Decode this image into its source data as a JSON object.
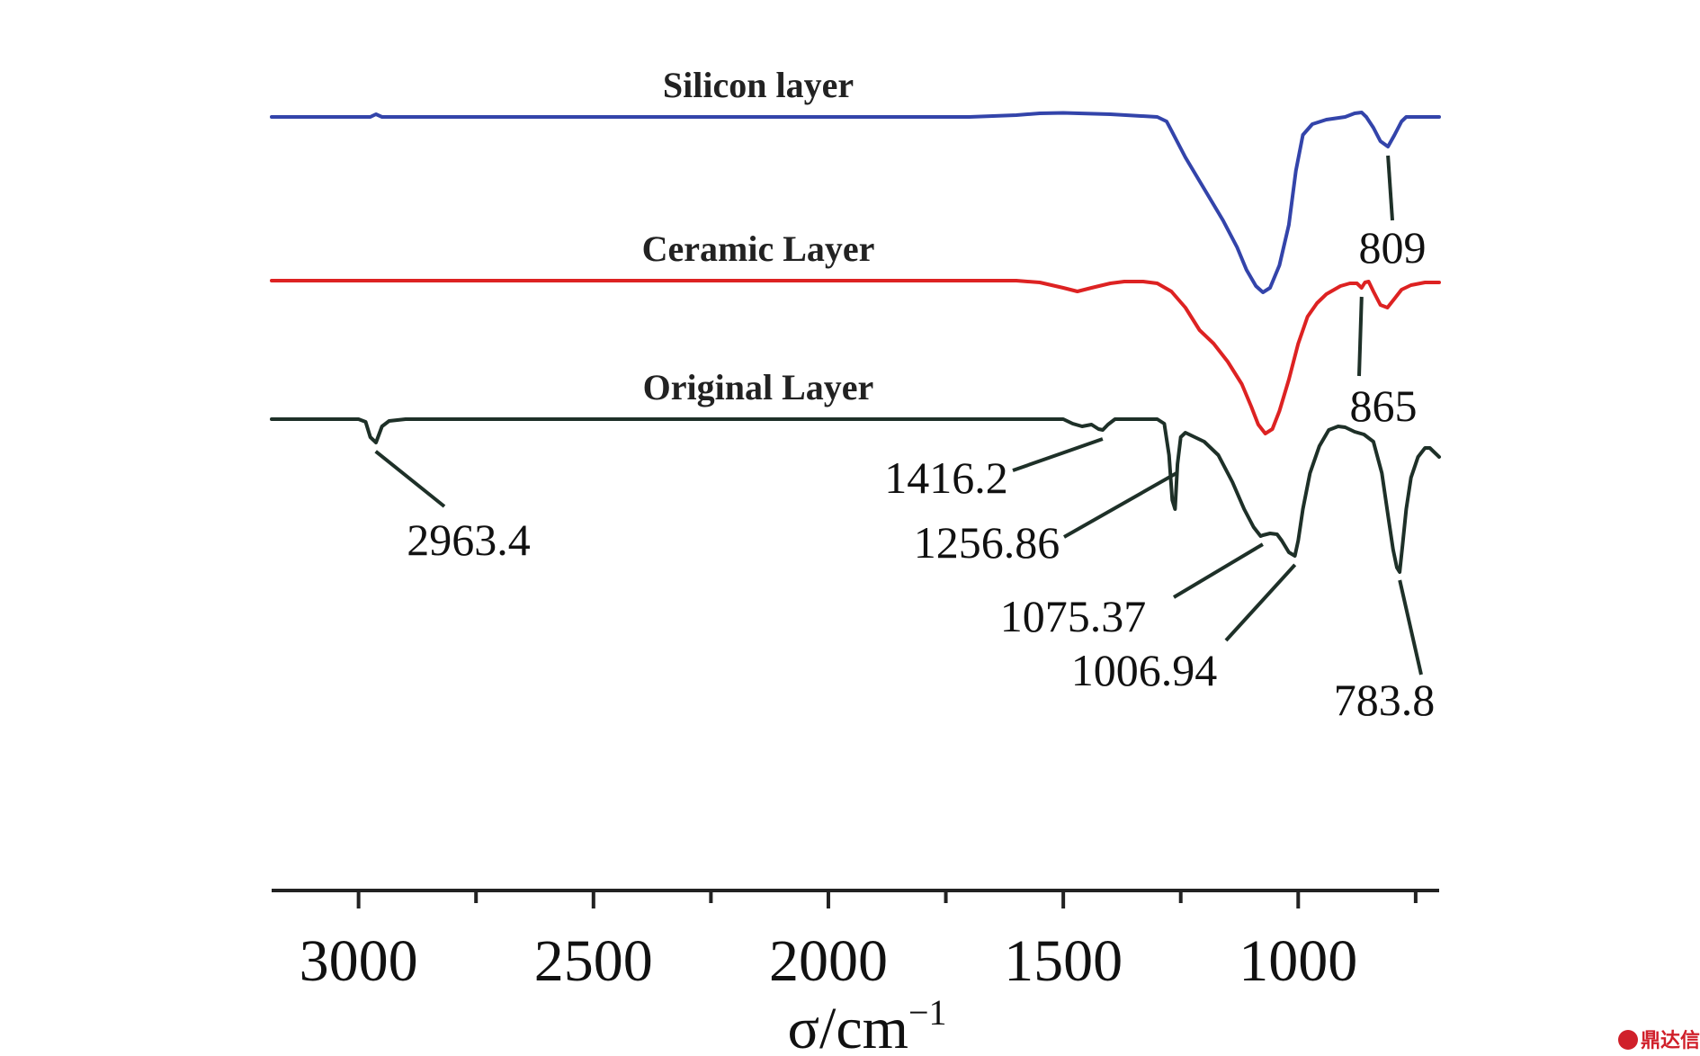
{
  "chart_data": {
    "type": "line",
    "x_axis": {
      "label_symbol": "σ",
      "label_unit": "/cm",
      "label_exp": "−1",
      "reversed": true,
      "xlim": [
        3185,
        700
      ],
      "major_ticks": [
        3000,
        2500,
        2000,
        1500,
        1000
      ],
      "minor_ticks": [
        2750,
        2250,
        1750,
        1250,
        750
      ],
      "tick_labels": [
        "3000",
        "2500",
        "2000",
        "1500",
        "1000"
      ]
    },
    "y_axis": {
      "shown": false
    },
    "grid": false,
    "legend": "none",
    "series": [
      {
        "name": "Silicon layer",
        "color": "#3344aa",
        "points": [
          [
            3185,
            0.0
          ],
          [
            3000,
            0.0
          ],
          [
            2975,
            0.0
          ],
          [
            2963,
            0.03
          ],
          [
            2950,
            0.0
          ],
          [
            2500,
            0.0
          ],
          [
            2000,
            0.0
          ],
          [
            1700,
            0.0
          ],
          [
            1600,
            0.02
          ],
          [
            1550,
            0.04
          ],
          [
            1500,
            0.045
          ],
          [
            1400,
            0.03
          ],
          [
            1300,
            0.0
          ],
          [
            1280,
            -0.05
          ],
          [
            1270,
            -0.15
          ],
          [
            1240,
            -0.45
          ],
          [
            1200,
            -0.8
          ],
          [
            1160,
            -1.15
          ],
          [
            1130,
            -1.45
          ],
          [
            1110,
            -1.7
          ],
          [
            1090,
            -1.88
          ],
          [
            1075,
            -1.95
          ],
          [
            1060,
            -1.9
          ],
          [
            1040,
            -1.65
          ],
          [
            1020,
            -1.2
          ],
          [
            1005,
            -0.6
          ],
          [
            990,
            -0.2
          ],
          [
            970,
            -0.08
          ],
          [
            940,
            -0.03
          ],
          [
            900,
            0.0
          ],
          [
            880,
            0.04
          ],
          [
            865,
            0.05
          ],
          [
            855,
            0.0
          ],
          [
            840,
            -0.12
          ],
          [
            825,
            -0.27
          ],
          [
            809,
            -0.33
          ],
          [
            795,
            -0.2
          ],
          [
            780,
            -0.05
          ],
          [
            770,
            0.0
          ],
          [
            700,
            0.0
          ]
        ]
      },
      {
        "name": "Ceramic Layer",
        "color": "#dd2222",
        "points": [
          [
            3185,
            0.0
          ],
          [
            2950,
            0.0
          ],
          [
            2500,
            0.0
          ],
          [
            2000,
            0.0
          ],
          [
            1600,
            0.0
          ],
          [
            1550,
            -0.02
          ],
          [
            1500,
            -0.08
          ],
          [
            1470,
            -0.12
          ],
          [
            1440,
            -0.08
          ],
          [
            1400,
            -0.03
          ],
          [
            1370,
            -0.01
          ],
          [
            1330,
            -0.01
          ],
          [
            1300,
            -0.03
          ],
          [
            1270,
            -0.12
          ],
          [
            1240,
            -0.3
          ],
          [
            1210,
            -0.55
          ],
          [
            1180,
            -0.7
          ],
          [
            1150,
            -0.9
          ],
          [
            1120,
            -1.15
          ],
          [
            1100,
            -1.4
          ],
          [
            1085,
            -1.6
          ],
          [
            1070,
            -1.7
          ],
          [
            1055,
            -1.65
          ],
          [
            1040,
            -1.45
          ],
          [
            1020,
            -1.1
          ],
          [
            1000,
            -0.7
          ],
          [
            980,
            -0.4
          ],
          [
            960,
            -0.25
          ],
          [
            940,
            -0.15
          ],
          [
            910,
            -0.06
          ],
          [
            890,
            -0.03
          ],
          [
            875,
            -0.03
          ],
          [
            865,
            -0.08
          ],
          [
            858,
            -0.02
          ],
          [
            850,
            -0.01
          ],
          [
            840,
            -0.12
          ],
          [
            825,
            -0.27
          ],
          [
            810,
            -0.3
          ],
          [
            795,
            -0.2
          ],
          [
            780,
            -0.1
          ],
          [
            760,
            -0.05
          ],
          [
            730,
            -0.02
          ],
          [
            700,
            -0.02
          ]
        ]
      },
      {
        "name": "Original Layer",
        "color": "#1e3028",
        "points": [
          [
            3185,
            0.0
          ],
          [
            3000,
            0.0
          ],
          [
            2985,
            -0.03
          ],
          [
            2975,
            -0.2
          ],
          [
            2963,
            -0.26
          ],
          [
            2950,
            -0.08
          ],
          [
            2935,
            -0.02
          ],
          [
            2900,
            0.0
          ],
          [
            2500,
            0.0
          ],
          [
            2000,
            0.0
          ],
          [
            1500,
            0.0
          ],
          [
            1480,
            -0.05
          ],
          [
            1460,
            -0.08
          ],
          [
            1440,
            -0.06
          ],
          [
            1425,
            -0.11
          ],
          [
            1416,
            -0.12
          ],
          [
            1405,
            -0.06
          ],
          [
            1390,
            0.0
          ],
          [
            1300,
            0.0
          ],
          [
            1285,
            -0.05
          ],
          [
            1275,
            -0.4
          ],
          [
            1268,
            -0.9
          ],
          [
            1262,
            -1.0
          ],
          [
            1257,
            -0.5
          ],
          [
            1250,
            -0.2
          ],
          [
            1240,
            -0.15
          ],
          [
            1200,
            -0.25
          ],
          [
            1170,
            -0.4
          ],
          [
            1140,
            -0.7
          ],
          [
            1115,
            -1.0
          ],
          [
            1095,
            -1.2
          ],
          [
            1080,
            -1.3
          ],
          [
            1075,
            -1.29
          ],
          [
            1060,
            -1.27
          ],
          [
            1045,
            -1.28
          ],
          [
            1035,
            -1.35
          ],
          [
            1020,
            -1.48
          ],
          [
            1007,
            -1.52
          ],
          [
            1000,
            -1.35
          ],
          [
            990,
            -1.0
          ],
          [
            975,
            -0.6
          ],
          [
            955,
            -0.3
          ],
          [
            935,
            -0.12
          ],
          [
            915,
            -0.08
          ],
          [
            900,
            -0.09
          ],
          [
            880,
            -0.14
          ],
          [
            860,
            -0.17
          ],
          [
            840,
            -0.25
          ],
          [
            822,
            -0.6
          ],
          [
            808,
            -1.1
          ],
          [
            798,
            -1.45
          ],
          [
            790,
            -1.65
          ],
          [
            784,
            -1.7
          ],
          [
            778,
            -1.4
          ],
          [
            770,
            -1.0
          ],
          [
            760,
            -0.65
          ],
          [
            745,
            -0.42
          ],
          [
            730,
            -0.32
          ],
          [
            720,
            -0.32
          ],
          [
            710,
            -0.37
          ],
          [
            700,
            -0.42
          ]
        ]
      }
    ],
    "annotations": [
      {
        "text": "809",
        "series": "Silicon layer",
        "x": 809
      },
      {
        "text": "865",
        "series": "Ceramic Layer",
        "x": 865
      },
      {
        "text": "2963.4",
        "series": "Original Layer",
        "x": 2963.4
      },
      {
        "text": "1416.2",
        "series": "Original Layer",
        "x": 1416.2
      },
      {
        "text": "1256.86",
        "series": "Original Layer",
        "x": 1256.86
      },
      {
        "text": "1075.37",
        "series": "Original Layer",
        "x": 1075.37
      },
      {
        "text": "1006.94",
        "series": "Original Layer",
        "x": 1006.94
      },
      {
        "text": "783.8",
        "series": "Original Layer",
        "x": 783.8
      }
    ]
  },
  "watermark": {
    "text": "鼎达信"
  }
}
